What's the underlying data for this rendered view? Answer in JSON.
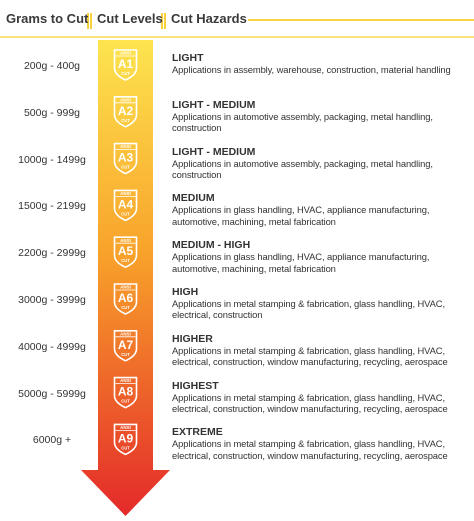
{
  "header": [
    "Grams to Cut",
    "Cut Levels",
    "Cut Hazards"
  ],
  "rows": [
    {
      "grams": "200g - 400g",
      "badge_top": "ANSI",
      "level": "A1",
      "badge_bottom": "CUT",
      "name": "LIGHT",
      "hazards": "Applications in assembly, warehouse, construction, material handling"
    },
    {
      "grams": "500g - 999g",
      "badge_top": "ANSI",
      "level": "A2",
      "badge_bottom": "CUT",
      "name": "LIGHT - MEDIUM",
      "hazards": "Applications in automotive assembly, packaging, metal handling, construction"
    },
    {
      "grams": "1000g - 1499g",
      "badge_top": "ANSI",
      "level": "A3",
      "badge_bottom": "CUT",
      "name": "LIGHT - MEDIUM",
      "hazards": "Applications in automotive assembly, packaging, metal handling, construction"
    },
    {
      "grams": "1500g - 2199g",
      "badge_top": "ANSI",
      "level": "A4",
      "badge_bottom": "CUT",
      "name": "MEDIUM",
      "hazards": "Applications in glass handling, HVAC, appliance manufacturing, automotive, machining, metal fabrication"
    },
    {
      "grams": "2200g - 2999g",
      "badge_top": "ANSI",
      "level": "A5",
      "badge_bottom": "CUT",
      "name": "MEDIUM - HIGH",
      "hazards": "Applications in glass handling, HVAC, appliance manufacturing, automotive, machining, metal fabrication"
    },
    {
      "grams": "3000g - 3999g",
      "badge_top": "ANSI",
      "level": "A6",
      "badge_bottom": "CUT",
      "name": "HIGH",
      "hazards": "Applications in metal stamping & fabrication, glass handling, HVAC, electrical, construction"
    },
    {
      "grams": "4000g - 4999g",
      "badge_top": "ANSI",
      "level": "A7",
      "badge_bottom": "CUT",
      "name": "HIGHER",
      "hazards": "Applications in metal stamping & fabrication, glass handling, HVAC, electrical, construction, window manufacturing, recycling, aerospace"
    },
    {
      "grams": "5000g - 5999g",
      "badge_top": "ANSI",
      "level": "A8",
      "badge_bottom": "CUT",
      "name": "HIGHEST",
      "hazards": "Applications in metal stamping & fabrication, glass handling, HVAC, electrical, construction, window manufacturing, recycling, aerospace"
    },
    {
      "grams": "6000g +",
      "badge_top": "ANSI",
      "level": "A9",
      "badge_bottom": "CUT",
      "name": "EXTREME",
      "hazards": "Applications in metal stamping & fabrication, glass handling, HVAC, electrical, construction, window manufacturing, recycling, aerospace"
    }
  ]
}
